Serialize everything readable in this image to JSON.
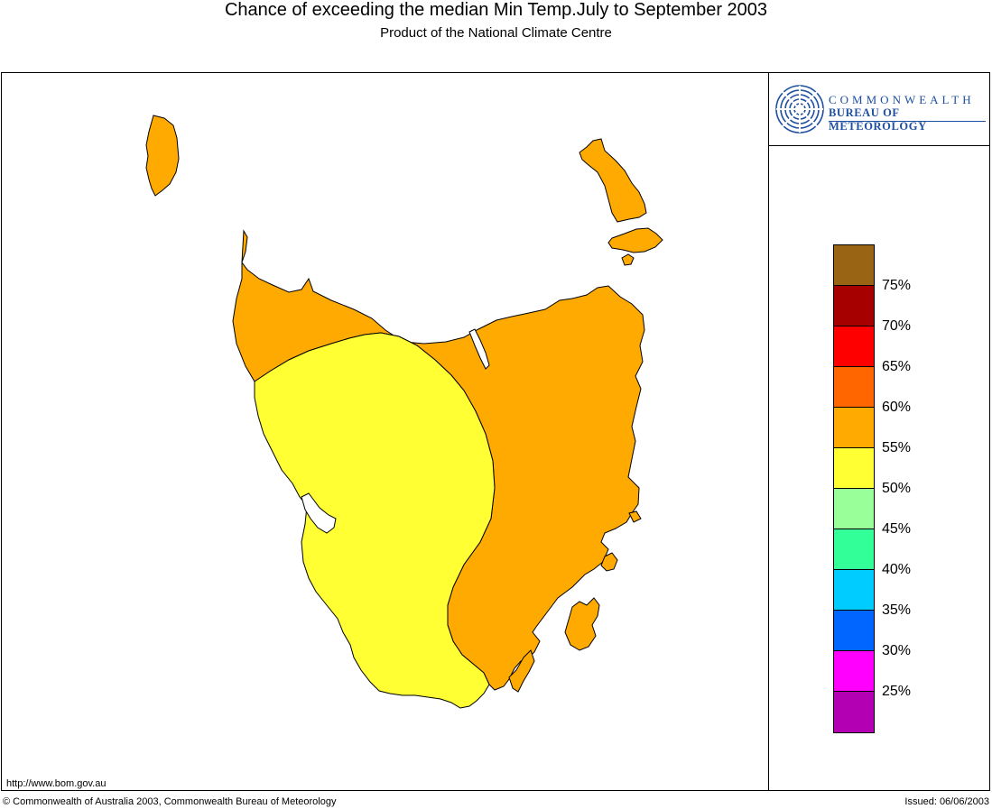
{
  "header": {
    "title": "Chance of exceeding the median Min Temp.July to September 2003",
    "subtitle": "Product of the National Climate Centre"
  },
  "logo": {
    "line1": "COMMONWEALTH",
    "line2": "BUREAU OF METEOROLOGY",
    "icon": "swirl-logo-icon",
    "color": "#1e4fa0"
  },
  "map": {
    "region": "Tasmania",
    "zones": [
      {
        "category": "55-60%",
        "color": "#ffaa00"
      },
      {
        "category": "50-55%",
        "color": "#ffff33"
      }
    ]
  },
  "legend": {
    "swatches": [
      {
        "color": "#996515"
      },
      {
        "color": "#a60000"
      },
      {
        "color": "#ff0000"
      },
      {
        "color": "#ff6600"
      },
      {
        "color": "#ffaa00"
      },
      {
        "color": "#ffff33"
      },
      {
        "color": "#99ff99"
      },
      {
        "color": "#33ff99"
      },
      {
        "color": "#00ccff"
      },
      {
        "color": "#0066ff"
      },
      {
        "color": "#ff00ff"
      },
      {
        "color": "#b300b3"
      }
    ],
    "labels": [
      "75%",
      "70%",
      "65%",
      "60%",
      "55%",
      "50%",
      "45%",
      "40%",
      "35%",
      "30%",
      "25%"
    ]
  },
  "footer": {
    "url": "http://www.bom.gov.au",
    "copyright": "© Commonwealth of Australia 2003, Commonwealth Bureau of Meteorology",
    "issued": "Issued: 06/06/2003"
  }
}
